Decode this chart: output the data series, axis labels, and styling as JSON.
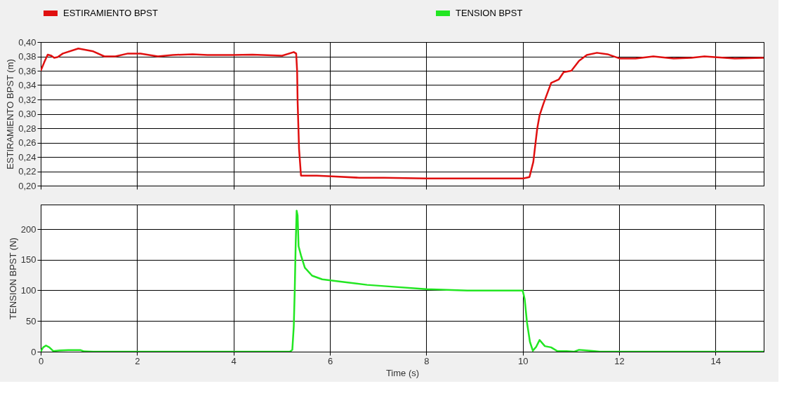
{
  "chart_data": [
    {
      "type": "line",
      "ylabel": "ESTIRAMIENTO BPST (m)",
      "legend": "top",
      "grid": true,
      "tick_labels": "y",
      "xlim": [
        0,
        15
      ],
      "xticks": [
        0,
        2,
        4,
        6,
        8,
        10,
        12,
        14
      ],
      "ylim": [
        0.2,
        0.4
      ],
      "yticks": [
        {
          "value": 0.2,
          "label": "0,20"
        },
        {
          "value": 0.22,
          "label": "0,22"
        },
        {
          "value": 0.24,
          "label": "0,24"
        },
        {
          "value": 0.26,
          "label": "0,26"
        },
        {
          "value": 0.28,
          "label": "0,28"
        },
        {
          "value": 0.3,
          "label": "0,30"
        },
        {
          "value": 0.32,
          "label": "0,32"
        },
        {
          "value": 0.34,
          "label": "0,34"
        },
        {
          "value": 0.36,
          "label": "0,36"
        },
        {
          "value": 0.38,
          "label": "0,38"
        },
        {
          "value": 0.4,
          "label": "0,40"
        }
      ],
      "series": [
        {
          "name": "ESTIRAMIENTO BPST",
          "color": "#e01010",
          "x": [
            0,
            0.08,
            0.145,
            0.22,
            0.28,
            0.35,
            0.46,
            0.78,
            1.09,
            1.32,
            1.55,
            1.81,
            2.07,
            2.43,
            2.74,
            3.15,
            3.46,
            3.98,
            4.39,
            5.01,
            5.25,
            5.3,
            5.32,
            5.33,
            5.36,
            5.4,
            5.73,
            6.05,
            6.61,
            7.12,
            8.0,
            10.01,
            10.14,
            10.22,
            10.3,
            10.35,
            10.43,
            10.59,
            10.75,
            10.85,
            11.01,
            11.17,
            11.33,
            11.54,
            11.76,
            12.02,
            12.34,
            12.71,
            13.13,
            13.5,
            13.77,
            13.98,
            14.4,
            15.0
          ],
          "values": [
            0.36,
            0.373,
            0.3825,
            0.381,
            0.378,
            0.379,
            0.384,
            0.391,
            0.387,
            0.38,
            0.38,
            0.384,
            0.384,
            0.38,
            0.382,
            0.383,
            0.382,
            0.382,
            0.3825,
            0.381,
            0.386,
            0.384,
            0.359,
            0.317,
            0.251,
            0.214,
            0.214,
            0.213,
            0.211,
            0.211,
            0.21,
            0.21,
            0.212,
            0.233,
            0.279,
            0.298,
            0.314,
            0.343,
            0.348,
            0.358,
            0.36,
            0.374,
            0.382,
            0.385,
            0.383,
            0.377,
            0.377,
            0.38,
            0.377,
            0.378,
            0.38,
            0.379,
            0.377,
            0.378
          ]
        }
      ]
    },
    {
      "type": "line",
      "xlabel": "Time (s)",
      "ylabel": "TENSION BPST (N)",
      "grid": true,
      "xlim": [
        0,
        15
      ],
      "xticks": [
        0,
        2,
        4,
        6,
        8,
        10,
        12,
        14
      ],
      "ylim": [
        0,
        240
      ],
      "yticks": [
        0,
        50,
        100,
        150,
        200
      ],
      "series": [
        {
          "name": "TENSION BPST",
          "color": "#22e622",
          "x": [
            0,
            0.05,
            0.11,
            0.18,
            0.26,
            0.39,
            0.57,
            0.83,
            0.9,
            1.09,
            5.17,
            5.22,
            5.25,
            5.27,
            5.29,
            5.31,
            5.33,
            5.35,
            5.4,
            5.48,
            5.63,
            5.84,
            6.25,
            6.77,
            7.12,
            8.0,
            8.85,
            10.0,
            10.04,
            10.09,
            10.15,
            10.21,
            10.28,
            10.35,
            10.46,
            10.59,
            10.72,
            10.91,
            11.07,
            11.17,
            11.28,
            11.49,
            11.6,
            15.0
          ],
          "values": [
            0,
            7,
            10,
            7,
            1,
            2,
            2.5,
            2.5,
            0.5,
            0,
            0,
            3,
            41,
            99,
            176,
            230,
            222,
            172,
            157,
            137,
            124,
            118,
            114,
            109,
            107,
            102,
            99.6,
            99.6,
            86,
            47,
            16,
            1.6,
            8,
            19,
            9,
            7,
            0.8,
            0.8,
            0,
            3,
            2.4,
            0.8,
            0,
            0
          ]
        }
      ]
    }
  ]
}
